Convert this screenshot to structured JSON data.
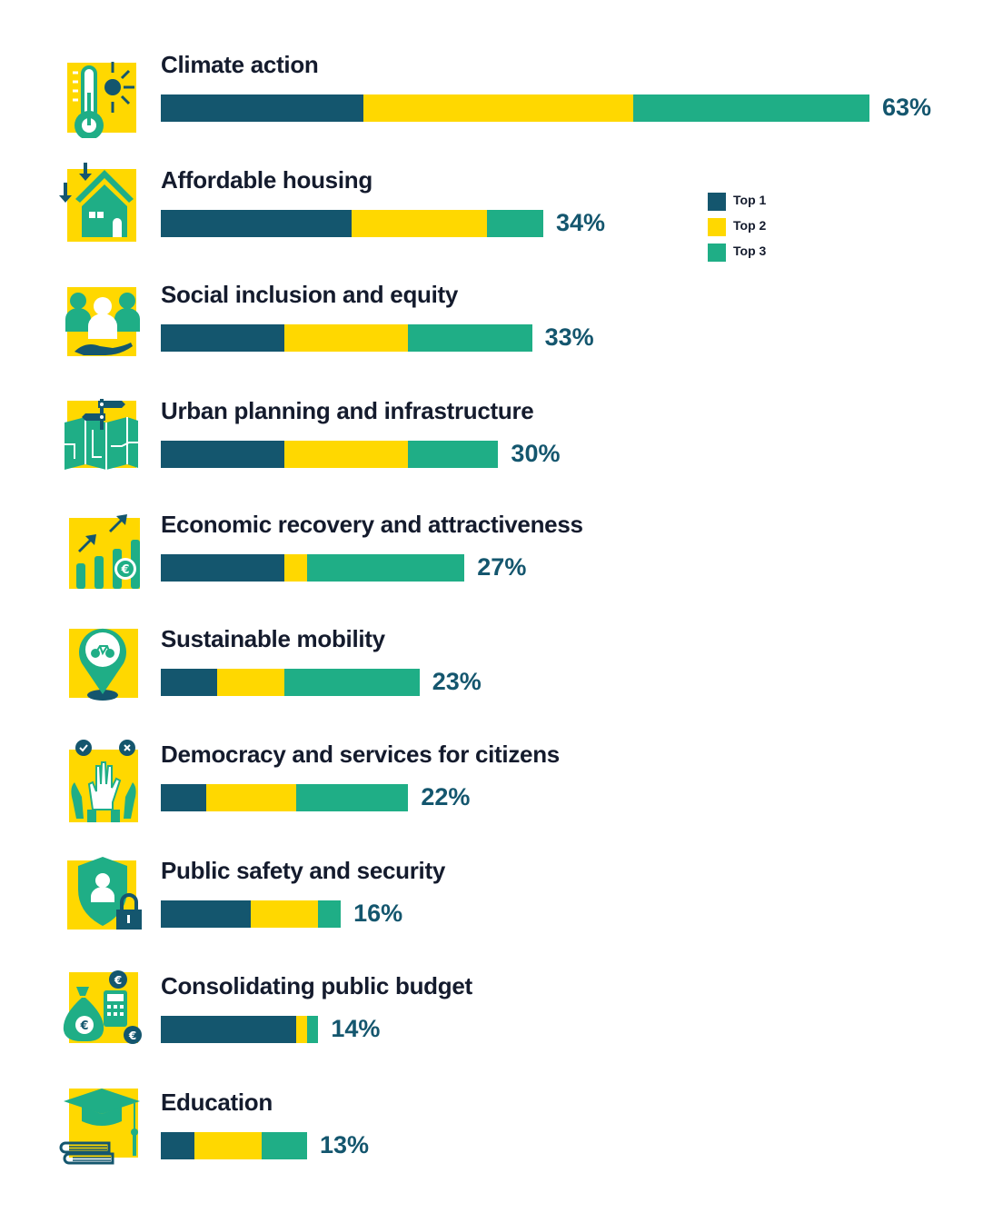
{
  "colors": {
    "top1": "#14566e",
    "top2": "#ffd800",
    "top3": "#1fae86",
    "icon_bg": "#ffd800",
    "text": "#141b2d",
    "pct_text": "#14566e"
  },
  "legend": [
    {
      "label": "Top 1",
      "color": "#14566e"
    },
    {
      "label": "Top 2",
      "color": "#ffd800"
    },
    {
      "label": "Top 3",
      "color": "#1fae86"
    }
  ],
  "chart_data": {
    "type": "bar",
    "orientation": "horizontal",
    "stacked": true,
    "title": "",
    "xlabel": "",
    "ylabel": "",
    "xlim": [
      0,
      63
    ],
    "grid": false,
    "legend_position": "top-right",
    "categories": [
      "Climate action",
      "Affordable housing",
      "Social inclusion and equity",
      "Urban planning and infrastructure",
      "Economic recovery and attractiveness",
      "Sustainable mobility",
      "Democracy and services for citizens",
      "Public safety and security",
      "Consolidating public budget",
      "Education"
    ],
    "icons": [
      "thermometer-sun-icon",
      "house-arrows-icon",
      "people-hand-icon",
      "map-signpost-icon",
      "growth-chart-euro-icon",
      "bike-location-pin-icon",
      "raised-hands-vote-icon",
      "shield-person-lock-icon",
      "money-bag-calculator-icon",
      "graduation-cap-books-icon"
    ],
    "series": [
      {
        "name": "Top 1",
        "values": [
          18,
          17,
          11,
          11,
          11,
          5,
          4,
          8,
          12,
          3
        ]
      },
      {
        "name": "Top 2",
        "values": [
          24,
          12,
          11,
          11,
          2,
          6,
          8,
          6,
          1,
          6
        ]
      },
      {
        "name": "Top 3",
        "values": [
          21,
          5,
          11,
          8,
          14,
          12,
          10,
          2,
          1,
          4
        ]
      }
    ],
    "totals": [
      63,
      34,
      33,
      30,
      27,
      23,
      22,
      16,
      14,
      13
    ],
    "total_labels": [
      "63%",
      "34%",
      "33%",
      "30%",
      "27%",
      "23%",
      "22%",
      "16%",
      "14%",
      "13%"
    ]
  }
}
